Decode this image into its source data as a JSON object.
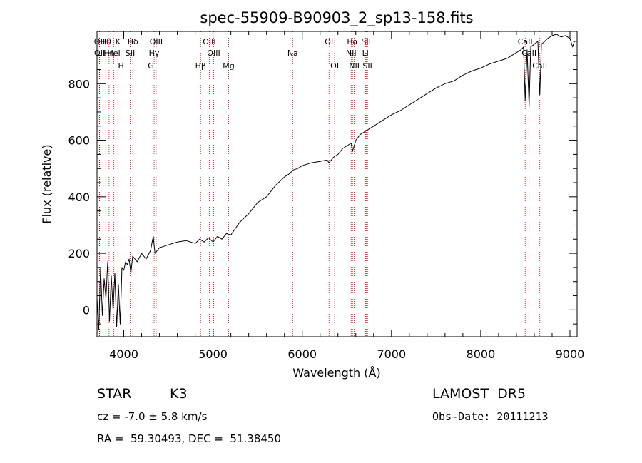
{
  "chart_data": {
    "type": "line",
    "title": "spec-55909-B90903_2_sp13-158.fits",
    "xlabel": "Wavelength (Å)",
    "ylabel": "Flux (relative)",
    "xlim": [
      3700,
      9080
    ],
    "ylim": [
      -95,
      985
    ],
    "x_ticks": [
      "4000",
      "5000",
      "6000",
      "7000",
      "8000",
      "9000"
    ],
    "y_ticks": [
      "0",
      "200",
      "400",
      "600",
      "800"
    ],
    "grid": false,
    "series": [
      {
        "color": "#000000",
        "x": [
          3700,
          3720,
          3740,
          3760,
          3780,
          3800,
          3820,
          3840,
          3860,
          3880,
          3900,
          3920,
          3940,
          3960,
          3980,
          4000,
          4020,
          4040,
          4060,
          4080,
          4100,
          4150,
          4200,
          4250,
          4300,
          4330,
          4350,
          4400,
          4500,
          4600,
          4700,
          4800,
          4850,
          4900,
          4950,
          5000,
          5050,
          5100,
          5150,
          5200,
          5300,
          5400,
          5500,
          5600,
          5700,
          5800,
          5850,
          5900,
          5950,
          6000,
          6100,
          6200,
          6280,
          6300,
          6350,
          6400,
          6450,
          6500,
          6550,
          6563,
          6600,
          6650,
          6700,
          6750,
          6800,
          6900,
          7000,
          7100,
          7200,
          7300,
          7400,
          7500,
          7600,
          7700,
          7800,
          7900,
          8000,
          8100,
          8200,
          8300,
          8400,
          8450,
          8480,
          8498,
          8520,
          8542,
          8560,
          8600,
          8640,
          8662,
          8680,
          8700,
          8750,
          8800,
          8850,
          8900,
          8950,
          9000,
          9030,
          9050
        ],
        "y": [
          40,
          -70,
          150,
          -20,
          110,
          40,
          170,
          -40,
          120,
          0,
          130,
          -60,
          90,
          -50,
          150,
          140,
          170,
          160,
          180,
          130,
          190,
          170,
          200,
          180,
          210,
          260,
          200,
          220,
          230,
          240,
          245,
          235,
          250,
          240,
          255,
          240,
          260,
          250,
          270,
          265,
          310,
          340,
          380,
          400,
          440,
          470,
          480,
          495,
          500,
          510,
          520,
          525,
          530,
          520,
          540,
          550,
          570,
          580,
          590,
          560,
          600,
          620,
          630,
          640,
          650,
          670,
          690,
          705,
          725,
          745,
          765,
          785,
          800,
          810,
          830,
          845,
          855,
          870,
          880,
          890,
          910,
          920,
          930,
          740,
          920,
          720,
          930,
          940,
          950,
          760,
          940,
          945,
          960,
          970,
          975,
          965,
          970,
          960,
          930,
          950
        ]
      }
    ],
    "spectral_lines": [
      {
        "label": "Hθ",
        "x": 3798
      },
      {
        "label": "K",
        "x": 3934
      },
      {
        "label": "Hδ",
        "x": 4102
      },
      {
        "label": "OIII",
        "x": 4363
      },
      {
        "label": "OIII",
        "x": 4959
      },
      {
        "label": "OI",
        "x": 6300
      },
      {
        "label": "Hα",
        "x": 6563
      },
      {
        "label": "SII",
        "x": 6716
      },
      {
        "label": "CaII",
        "x": 8498
      },
      {
        "label": "OII",
        "x": 3727
      },
      {
        "label": "HeI",
        "x": 3889
      },
      {
        "label": "SII",
        "x": 4072
      },
      {
        "label": "Hγ",
        "x": 4340
      },
      {
        "label": "OIII",
        "x": 5007
      },
      {
        "label": "Na",
        "x": 5893
      },
      {
        "label": "NII",
        "x": 6548
      },
      {
        "label": "Li",
        "x": 6708
      },
      {
        "label": "CaII",
        "x": 8542
      },
      {
        "label": "OII",
        "x": 3729
      },
      {
        "label": "Hη",
        "x": 3835
      },
      {
        "label": "H",
        "x": 3969
      },
      {
        "label": "G",
        "x": 4304
      },
      {
        "label": "Hβ",
        "x": 4861
      },
      {
        "label": "Mg",
        "x": 5175
      },
      {
        "label": "OI",
        "x": 6363
      },
      {
        "label": "NII",
        "x": 6583
      },
      {
        "label": "SII",
        "x": 6731
      },
      {
        "label": "CaII",
        "x": 8662
      }
    ]
  },
  "info": {
    "class_label": "STAR",
    "subclass_label": "K3",
    "survey": "LAMOST  DR5",
    "cz": "cz = -7.0 ± 5.8 km/s",
    "obs_date": "Obs-Date: 20111213",
    "coords": "RA =  59.30493, DEC =  51.38450"
  }
}
